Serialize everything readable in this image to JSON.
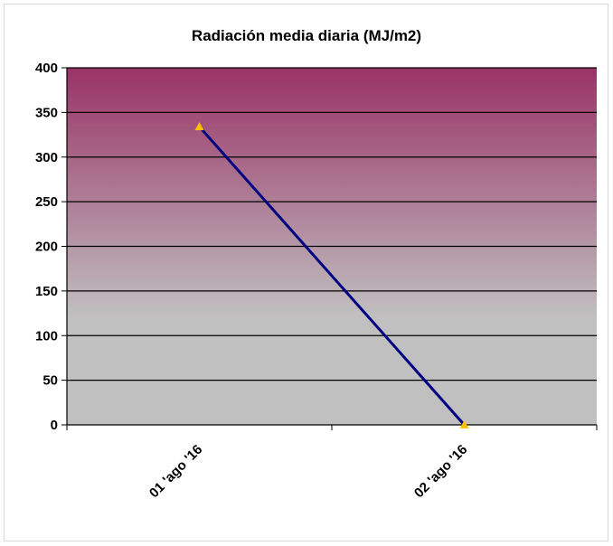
{
  "chart_data": {
    "type": "line",
    "title": "Radiación media diaria (MJ/m2)",
    "xlabel": "",
    "ylabel": "",
    "categories": [
      "01 'ago '16",
      "02 'ago '16"
    ],
    "series": [
      {
        "values": [
          334,
          0
        ],
        "color": "#000080",
        "marker": "triangle",
        "marker_color": "#ffc000"
      }
    ],
    "ylim": [
      0,
      400
    ],
    "yticks": [
      0,
      50,
      100,
      150,
      200,
      250,
      300,
      350,
      400
    ],
    "grid": true,
    "legend": "none",
    "background_gradient": [
      "#993366",
      "#c0c0c0"
    ]
  }
}
